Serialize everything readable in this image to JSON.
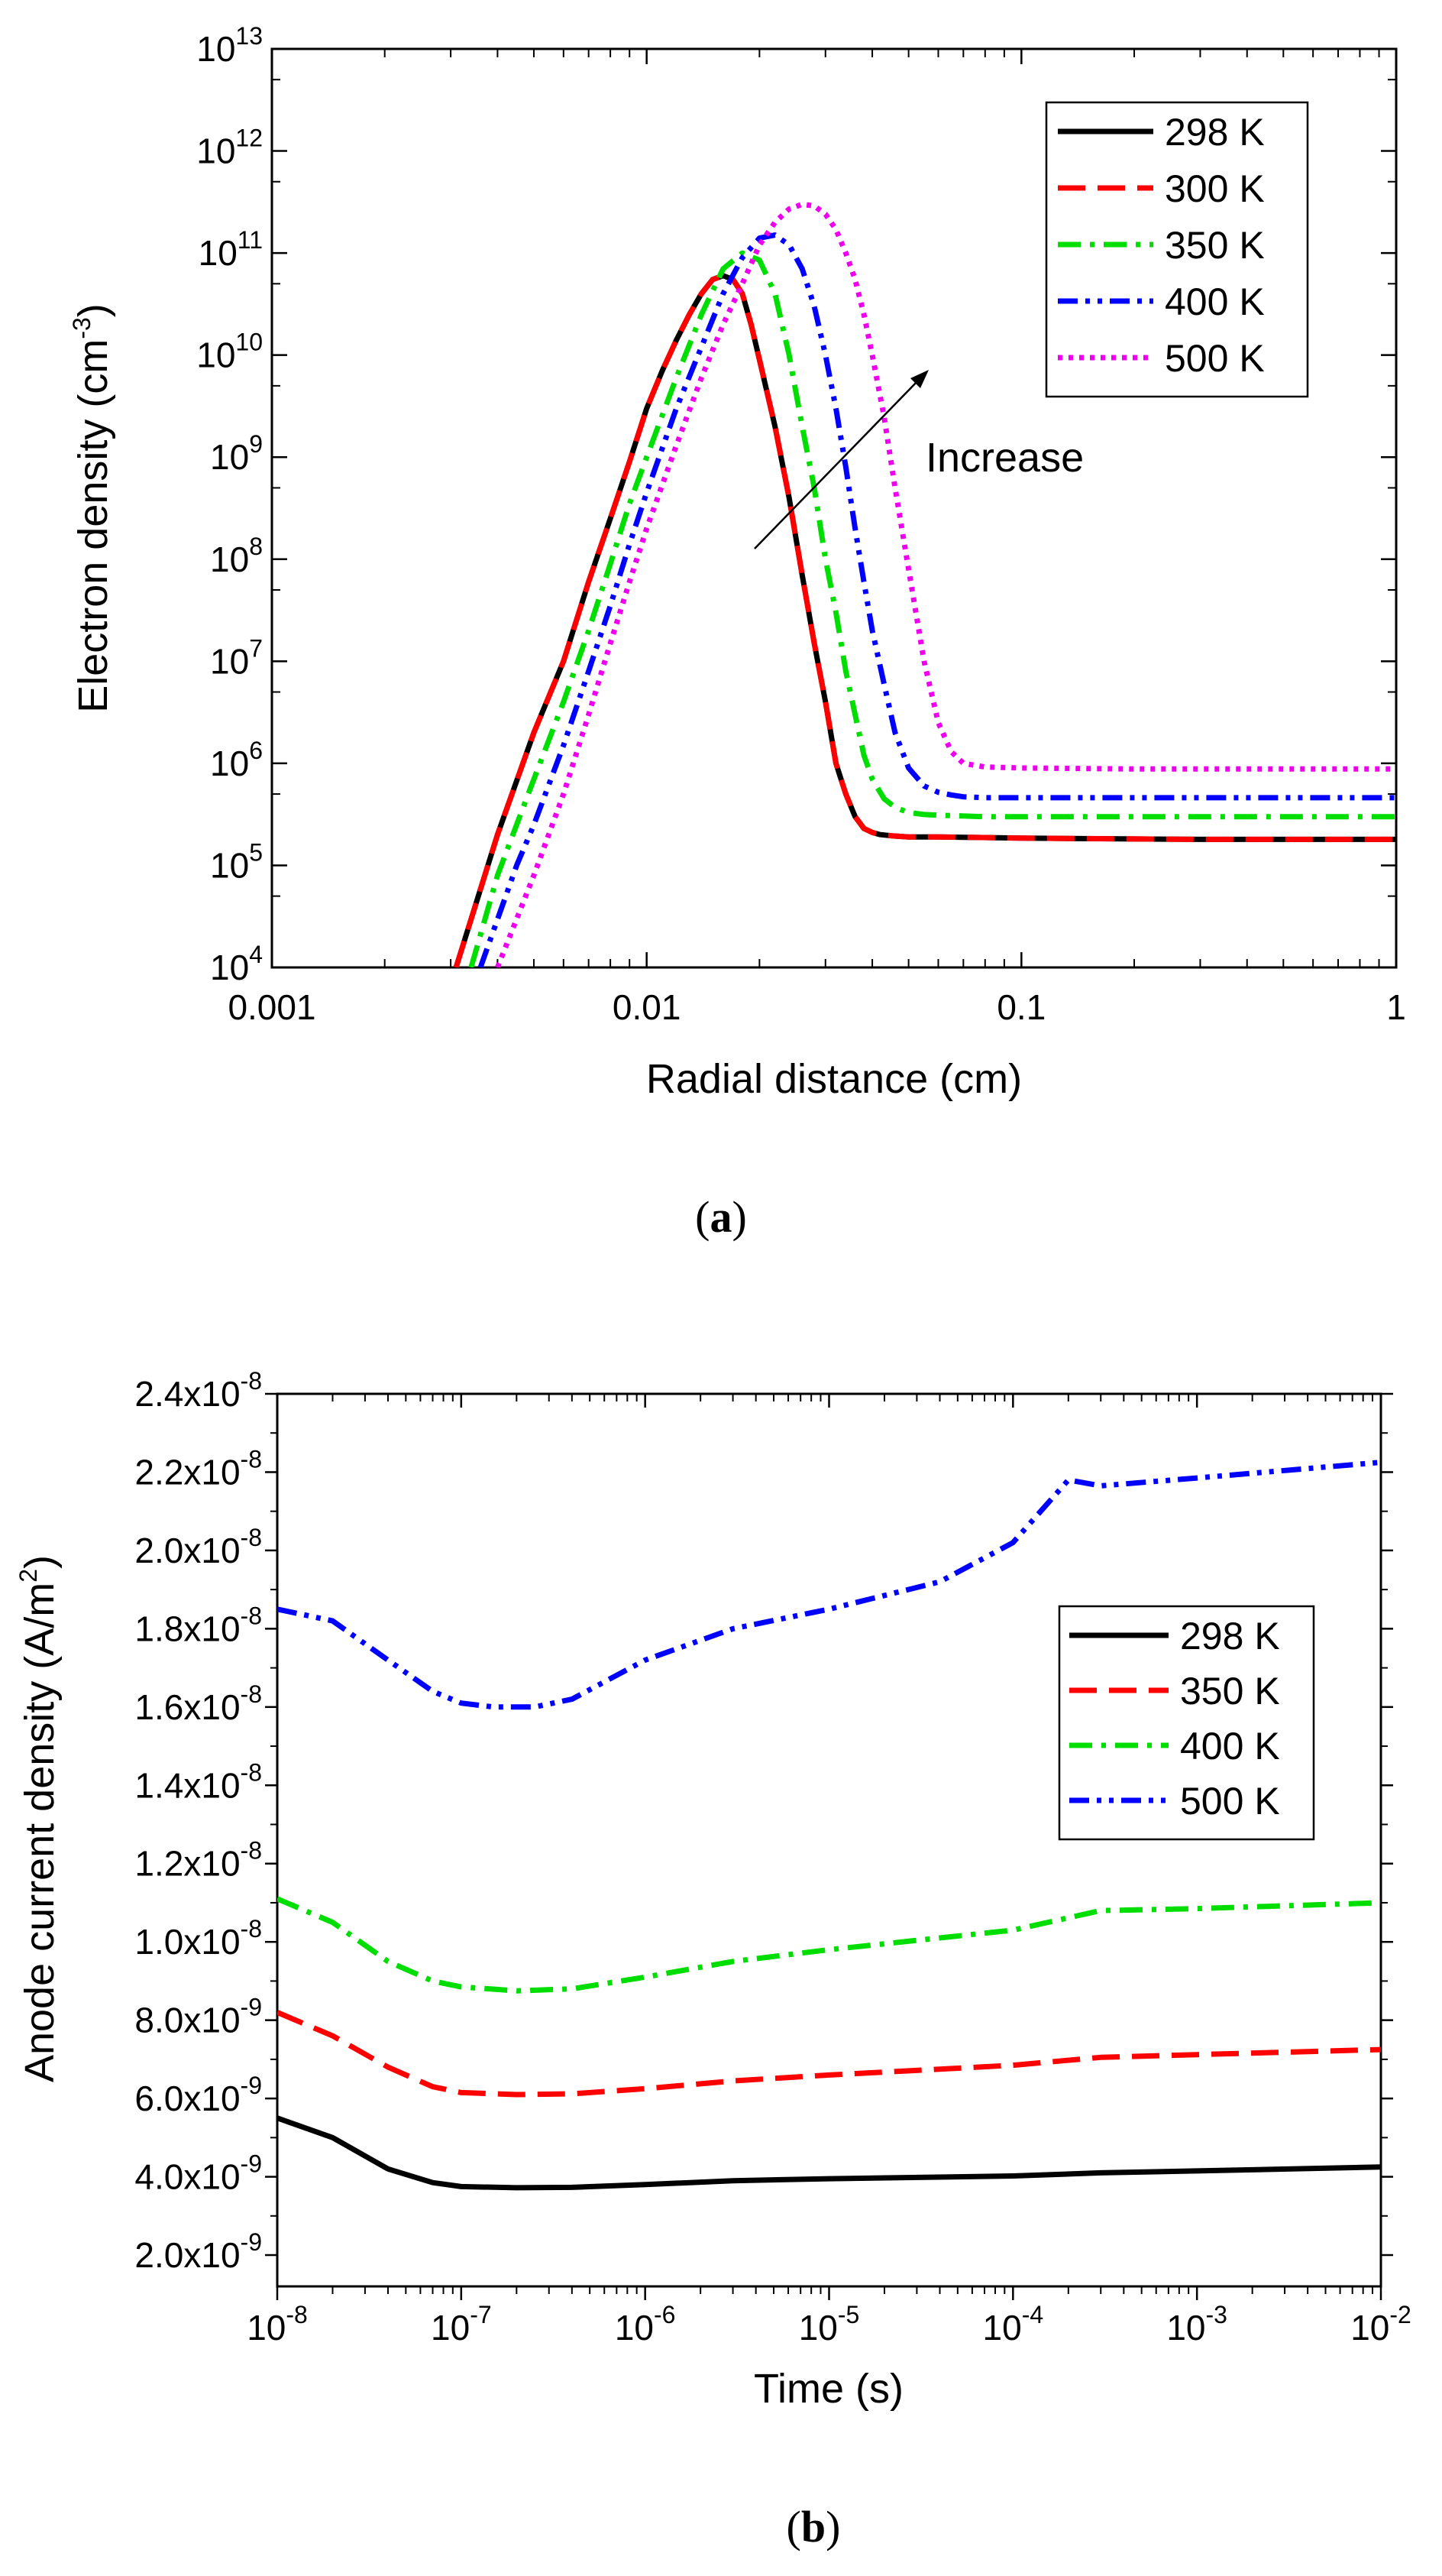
{
  "chart_data": [
    {
      "type": "line",
      "caption_letter": "a",
      "xlabel": "Radial distance (cm)",
      "ylabel": "Electron density (cm",
      "ylabel_exp": "-3",
      "ylabel_close": ")",
      "xscale": "log",
      "yscale": "log",
      "xlim": [
        0.001,
        1
      ],
      "ylim_exp": [
        4,
        13
      ],
      "x_ticks": [
        "0.001",
        "0.01",
        "0.1",
        "1"
      ],
      "y_tick_base": "10",
      "y_tick_exps": [
        "4",
        "5",
        "6",
        "7",
        "8",
        "9",
        "10",
        "11",
        "12",
        "13"
      ],
      "legend_position": "top-right",
      "annotation": "Increase",
      "series": [
        {
          "name": "298 K",
          "color": "#000000",
          "dash": "solid",
          "x": [
            0.0031,
            0.004,
            0.005,
            0.006,
            0.007,
            0.008,
            0.009,
            0.01,
            0.011,
            0.012,
            0.013,
            0.014,
            0.015,
            0.016,
            0.017,
            0.018,
            0.019,
            0.02,
            0.022,
            0.024,
            0.026,
            0.028,
            0.03,
            0.032,
            0.034,
            0.036,
            0.038,
            0.04,
            0.042,
            0.045,
            0.05,
            0.06,
            0.1,
            0.3,
            0.999
          ],
          "y": [
            10000,
            200000,
            2000000,
            10000000,
            60000000,
            250000000,
            900000000,
            3000000000,
            7000000000,
            14000000000,
            25000000000,
            40000000000,
            55000000000,
            60000000000,
            55000000000,
            40000000000,
            20000000000,
            9000000000,
            2000000000,
            400000000,
            70000000,
            15000000,
            4000000,
            1000000,
            500000,
            300000,
            230000,
            210000,
            200000,
            195000,
            190000,
            190000,
            185000,
            180000,
            180000
          ]
        },
        {
          "name": "300 K",
          "color": "#ff0000",
          "dash": "dash",
          "x": [
            0.0031,
            0.004,
            0.005,
            0.006,
            0.007,
            0.008,
            0.009,
            0.01,
            0.011,
            0.012,
            0.013,
            0.014,
            0.015,
            0.016,
            0.017,
            0.018,
            0.019,
            0.02,
            0.022,
            0.024,
            0.026,
            0.028,
            0.03,
            0.032,
            0.034,
            0.036,
            0.038,
            0.04,
            0.042,
            0.045,
            0.05,
            0.06,
            0.1,
            0.3,
            0.999
          ],
          "y": [
            10000,
            200000,
            2000000,
            10000000,
            60000000,
            250000000,
            900000000,
            3000000000,
            7000000000,
            14000000000,
            25000000000,
            40000000000,
            55000000000,
            60000000000,
            55000000000,
            40000000000,
            20000000000,
            9000000000,
            2000000000,
            400000000,
            70000000,
            15000000,
            4000000,
            1000000,
            500000,
            300000,
            230000,
            210000,
            200000,
            195000,
            190000,
            190000,
            185000,
            180000,
            180000
          ]
        },
        {
          "name": "350 K",
          "color": "#00dd00",
          "dash": "dashdot",
          "x": [
            0.0034,
            0.004,
            0.005,
            0.006,
            0.007,
            0.008,
            0.009,
            0.01,
            0.012,
            0.014,
            0.016,
            0.018,
            0.02,
            0.022,
            0.024,
            0.026,
            0.028,
            0.03,
            0.032,
            0.034,
            0.036,
            0.038,
            0.04,
            0.043,
            0.046,
            0.05,
            0.055,
            0.06,
            0.08,
            0.15,
            0.5,
            0.999
          ],
          "y": [
            10000,
            80000,
            700000,
            4000000,
            20000000,
            90000000,
            350000000,
            1000000000,
            6000000000,
            25000000000,
            70000000000,
            100000000000,
            85000000000,
            40000000000,
            10000000000,
            2000000000,
            500000000,
            100000000,
            30000000,
            8000000,
            3000000,
            1200000,
            700000,
            450000,
            370000,
            330000,
            315000,
            310000,
            300000,
            300000,
            300000,
            300000
          ]
        },
        {
          "name": "400 K",
          "color": "#0000ff",
          "dash": "dashdotdot",
          "x": [
            0.0036,
            0.0045,
            0.005,
            0.006,
            0.007,
            0.008,
            0.009,
            0.01,
            0.012,
            0.014,
            0.016,
            0.018,
            0.02,
            0.022,
            0.024,
            0.026,
            0.028,
            0.03,
            0.032,
            0.034,
            0.036,
            0.038,
            0.04,
            0.043,
            0.046,
            0.05,
            0.055,
            0.06,
            0.065,
            0.07,
            0.08,
            0.15,
            0.5,
            0.999
          ],
          "y": [
            10000,
            100000,
            250000,
            1500000,
            8000000,
            35000000,
            140000000,
            450000000,
            3000000000,
            12000000000,
            40000000000,
            90000000000,
            140000000000,
            150000000000,
            120000000000,
            70000000000,
            30000000000,
            10000000000,
            3000000000,
            800000000,
            200000000,
            60000000,
            20000000,
            6000000,
            2000000,
            900000,
            600000,
            520000,
            490000,
            470000,
            460000,
            460000,
            460000,
            460000
          ]
        },
        {
          "name": "500 K",
          "color": "#ee00ee",
          "dash": "dot",
          "x": [
            0.004,
            0.005,
            0.006,
            0.007,
            0.008,
            0.009,
            0.01,
            0.012,
            0.014,
            0.016,
            0.018,
            0.02,
            0.022,
            0.024,
            0.026,
            0.028,
            0.03,
            0.032,
            0.034,
            0.036,
            0.038,
            0.04,
            0.043,
            0.046,
            0.05,
            0.055,
            0.06,
            0.065,
            0.07,
            0.08,
            0.1,
            0.2,
            0.5,
            0.999
          ],
          "y": [
            10000,
            80000,
            500000,
            3000000,
            15000000,
            60000000,
            200000000,
            1300000000,
            6000000000,
            20000000000,
            50000000000,
            120000000000,
            200000000000,
            270000000000,
            300000000000,
            290000000000,
            240000000000,
            170000000000,
            100000000000,
            55000000000,
            25000000000,
            10000000000,
            2500000000,
            500000000,
            80000000,
            10000000,
            2500000,
            1300000,
            1000000,
            920000,
            900000,
            880000,
            880000,
            880000
          ]
        }
      ]
    },
    {
      "type": "line",
      "caption_letter": "b",
      "xlabel": "Time (s)",
      "ylabel": "Anode current density (A/m",
      "ylabel_exp": "2",
      "ylabel_close": ")",
      "xscale": "log",
      "yscale": "linear",
      "xlim": [
        1e-08,
        0.01
      ],
      "ylim": [
        1.2e-09,
        2.4e-08
      ],
      "x_tick_base": "10",
      "x_tick_exps": [
        "-8",
        "-7",
        "-6",
        "-5",
        "-4",
        "-3",
        "-2"
      ],
      "y_ticks": [
        {
          "v": 2e-09,
          "m": "2.0x10",
          "e": "-9"
        },
        {
          "v": 4e-09,
          "m": "4.0x10",
          "e": "-9"
        },
        {
          "v": 6e-09,
          "m": "6.0x10",
          "e": "-9"
        },
        {
          "v": 8e-09,
          "m": "8.0x10",
          "e": "-9"
        },
        {
          "v": 1e-08,
          "m": "1.0x10",
          "e": "-8"
        },
        {
          "v": 1.2e-08,
          "m": "1.2x10",
          "e": "-8"
        },
        {
          "v": 1.4e-08,
          "m": "1.4x10",
          "e": "-8"
        },
        {
          "v": 1.6e-08,
          "m": "1.6x10",
          "e": "-8"
        },
        {
          "v": 1.8e-08,
          "m": "1.8x10",
          "e": "-8"
        },
        {
          "v": 2e-08,
          "m": "2.0x10",
          "e": "-8"
        },
        {
          "v": 2.2e-08,
          "m": "2.2x10",
          "e": "-8"
        },
        {
          "v": 2.4e-08,
          "m": "2.4x10",
          "e": "-8"
        }
      ],
      "legend_position": "center-right",
      "series": [
        {
          "name": "298 K",
          "color": "#000000",
          "dash": "solid",
          "x": [
            1e-08,
            2e-08,
            4e-08,
            7e-08,
            1e-07,
            2e-07,
            4e-07,
            1e-06,
            3e-06,
            1e-05,
            0.0001,
            0.0003,
            0.001,
            0.01
          ],
          "y": [
            5.5e-09,
            5e-09,
            4.2e-09,
            3.85e-09,
            3.75e-09,
            3.72e-09,
            3.73e-09,
            3.8e-09,
            3.9e-09,
            3.95e-09,
            4.02e-09,
            4.1e-09,
            4.15e-09,
            4.25e-09
          ]
        },
        {
          "name": "350 K",
          "color": "#ff0000",
          "dash": "dash",
          "x": [
            1e-08,
            2e-08,
            4e-08,
            7e-08,
            1e-07,
            2e-07,
            4e-07,
            1e-06,
            3e-06,
            1e-05,
            0.0001,
            0.0003,
            0.001,
            0.01
          ],
          "y": [
            8.2e-09,
            7.6e-09,
            6.8e-09,
            6.3e-09,
            6.15e-09,
            6.1e-09,
            6.12e-09,
            6.25e-09,
            6.45e-09,
            6.6e-09,
            6.85e-09,
            7.05e-09,
            7.12e-09,
            7.25e-09
          ]
        },
        {
          "name": "400 K",
          "color": "#00dd00",
          "dash": "dashdot",
          "x": [
            1e-08,
            2e-08,
            4e-08,
            7e-08,
            1e-07,
            2e-07,
            4e-07,
            1e-06,
            3e-06,
            1e-05,
            0.0001,
            0.0003,
            0.001,
            0.01
          ],
          "y": [
            1.11e-08,
            1.05e-08,
            9.5e-09,
            9e-09,
            8.85e-09,
            8.75e-09,
            8.8e-09,
            9.1e-09,
            9.5e-09,
            9.8e-09,
            1.03e-08,
            1.08e-08,
            1.085e-08,
            1.1e-08
          ]
        },
        {
          "name": "500 K",
          "color": "#0000ff",
          "dash": "dashdotdot",
          "x": [
            1e-08,
            2e-08,
            4e-08,
            7e-08,
            1e-07,
            1.5e-07,
            2.5e-07,
            4e-07,
            1e-06,
            3e-06,
            1e-05,
            4e-05,
            0.0001,
            0.0002,
            0.0003,
            0.001,
            0.01
          ],
          "y": [
            1.85e-08,
            1.82e-08,
            1.72e-08,
            1.64e-08,
            1.61e-08,
            1.6e-08,
            1.6e-08,
            1.62e-08,
            1.72e-08,
            1.8e-08,
            1.85e-08,
            1.92e-08,
            2.02e-08,
            2.18e-08,
            2.165e-08,
            2.185e-08,
            2.225e-08
          ]
        }
      ]
    }
  ]
}
